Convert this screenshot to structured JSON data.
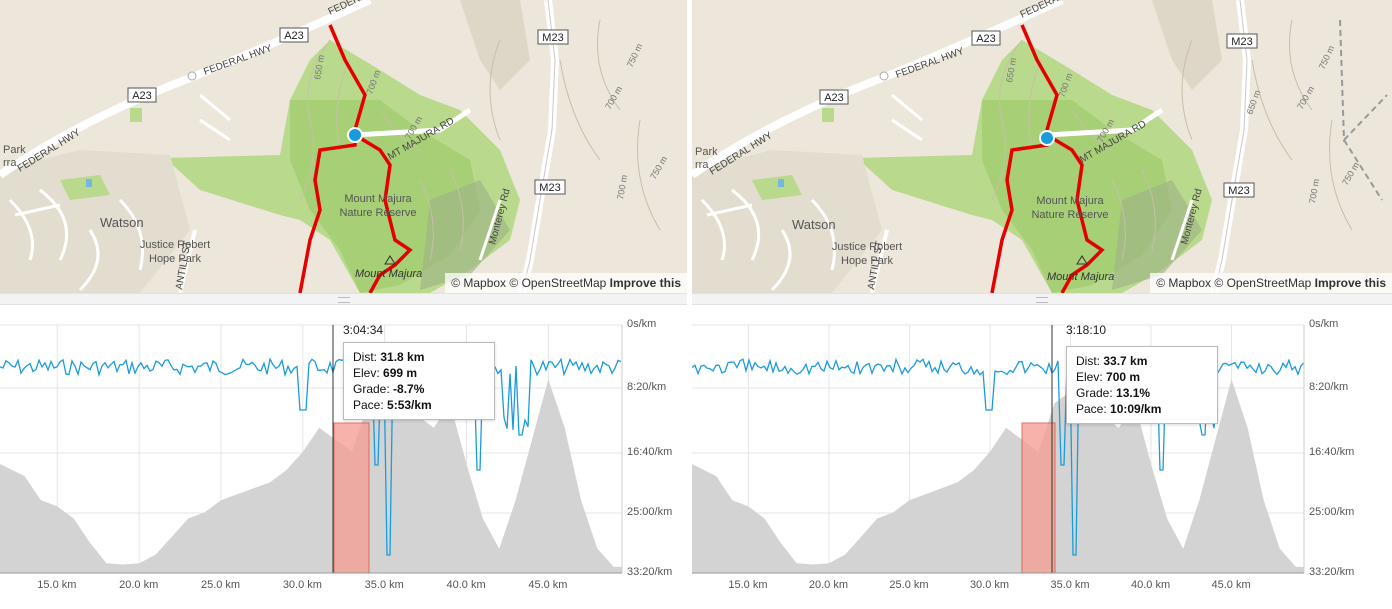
{
  "colors": {
    "route": "#e50000",
    "pace_line": "#1a9bdc",
    "elevation_fill": "#d3d3d3",
    "selection": "#f4a097",
    "park": "#b6d98a"
  },
  "map": {
    "roads": {
      "a23": "A23",
      "m23": "M23",
      "federal_hwy": "FEDERAL HWY",
      "majura_rd": "MT MAJURA RD",
      "antill": "ANTILL ST",
      "monterey": "Monterey Rd"
    },
    "contours": [
      "650 m",
      "700 m",
      "750 m"
    ],
    "places": {
      "watson": "Watson",
      "justice_1": "Justice Robert",
      "justice_2": "Hope Park",
      "reserve_1": "Mount Majura",
      "reserve_2": "Nature Reserve",
      "peak": "Mount Majura",
      "park_1": "Park",
      "park_2": "rra"
    },
    "attribution": {
      "mapbox": "© Mapbox",
      "osm": "© OpenStreetMap",
      "improve": "Improve this"
    }
  },
  "chart": {
    "y_axis_labels": [
      "0s/km",
      "8:20/km",
      "16:40/km",
      "25:00/km",
      "33:20/km"
    ],
    "x_axis_labels": [
      "15.0 km",
      "20.0 km",
      "25.0 km",
      "30.0 km",
      "35.0 km",
      "40.0 km",
      "45.0 km"
    ]
  },
  "tooltip_labels": {
    "dist": "Dist: ",
    "elev": "Elev: ",
    "grade": "Grade: ",
    "pace": "Pace: "
  },
  "panels": [
    {
      "time": "3:04:34",
      "dist": "31.8 km",
      "elev": "699 m",
      "grade": "-8.7%",
      "pace": "5:53/km"
    },
    {
      "time": "3:18:10",
      "dist": "33.7 km",
      "elev": "700 m",
      "grade": "13.1%",
      "pace": "10:09/km"
    }
  ],
  "chart_data": {
    "type": "area",
    "xlabel": "",
    "ylabel": "",
    "x_range_km": [
      11.5,
      49.5
    ],
    "y_pace_range_s_per_km": [
      0,
      2000
    ],
    "x": [
      11.5,
      13,
      14,
      15,
      16,
      17,
      18,
      19,
      20,
      21,
      22,
      23,
      24,
      25,
      26,
      27,
      28,
      29,
      30,
      31,
      32,
      33,
      34,
      35,
      36,
      37,
      38,
      39,
      40,
      41,
      42,
      43,
      44,
      45,
      46,
      47,
      48,
      49,
      49.5
    ],
    "series": [
      {
        "values": [
          630,
          620,
          600,
          595,
          585,
          565,
          548,
          547,
          548,
          555,
          570,
          585,
          590,
          600,
          605,
          610,
          615,
          625,
          640,
          660,
          650,
          640,
          680,
          690,
          700,
          670,
          660,
          680,
          630,
          585,
          560,
          600,
          650,
          700,
          660,
          600,
          560,
          545,
          545
        ]
      }
    ]
  }
}
